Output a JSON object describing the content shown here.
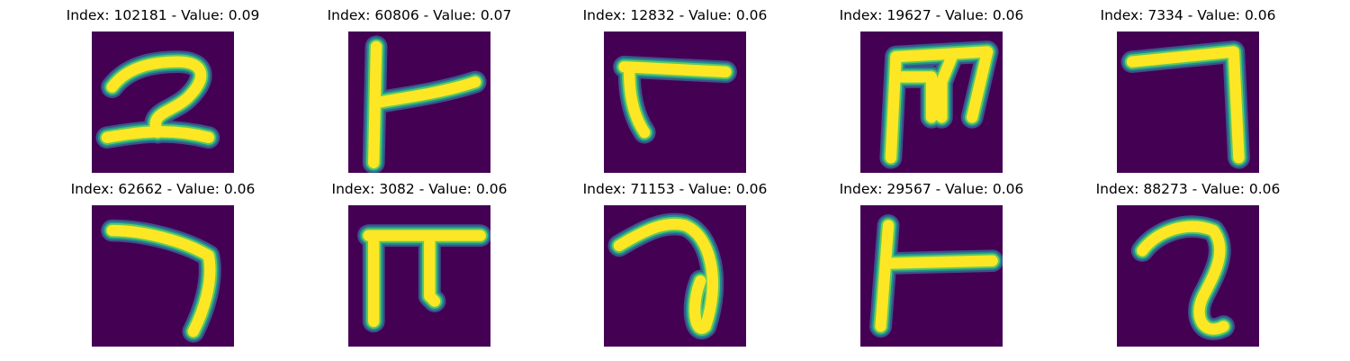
{
  "colors": {
    "background": "#440154",
    "stroke_core": "#fde725",
    "stroke_mid": "#5ec962",
    "stroke_edge": "#21918c",
    "stroke_outer": "#3b528b"
  },
  "panels": [
    {
      "title": "Index: 102181 - Value: 0.09"
    },
    {
      "title": "Index: 60806 - Value: 0.07"
    },
    {
      "title": "Index: 12832 - Value: 0.06"
    },
    {
      "title": "Index: 19627 - Value: 0.06"
    },
    {
      "title": "Index: 7334 - Value: 0.06"
    },
    {
      "title": "Index: 62662 - Value: 0.06"
    },
    {
      "title": "Index: 3082 - Value: 0.06"
    },
    {
      "title": "Index: 71153 - Value: 0.06"
    },
    {
      "title": "Index: 29567 - Value: 0.06"
    },
    {
      "title": "Index: 88273 - Value: 0.06"
    }
  ]
}
